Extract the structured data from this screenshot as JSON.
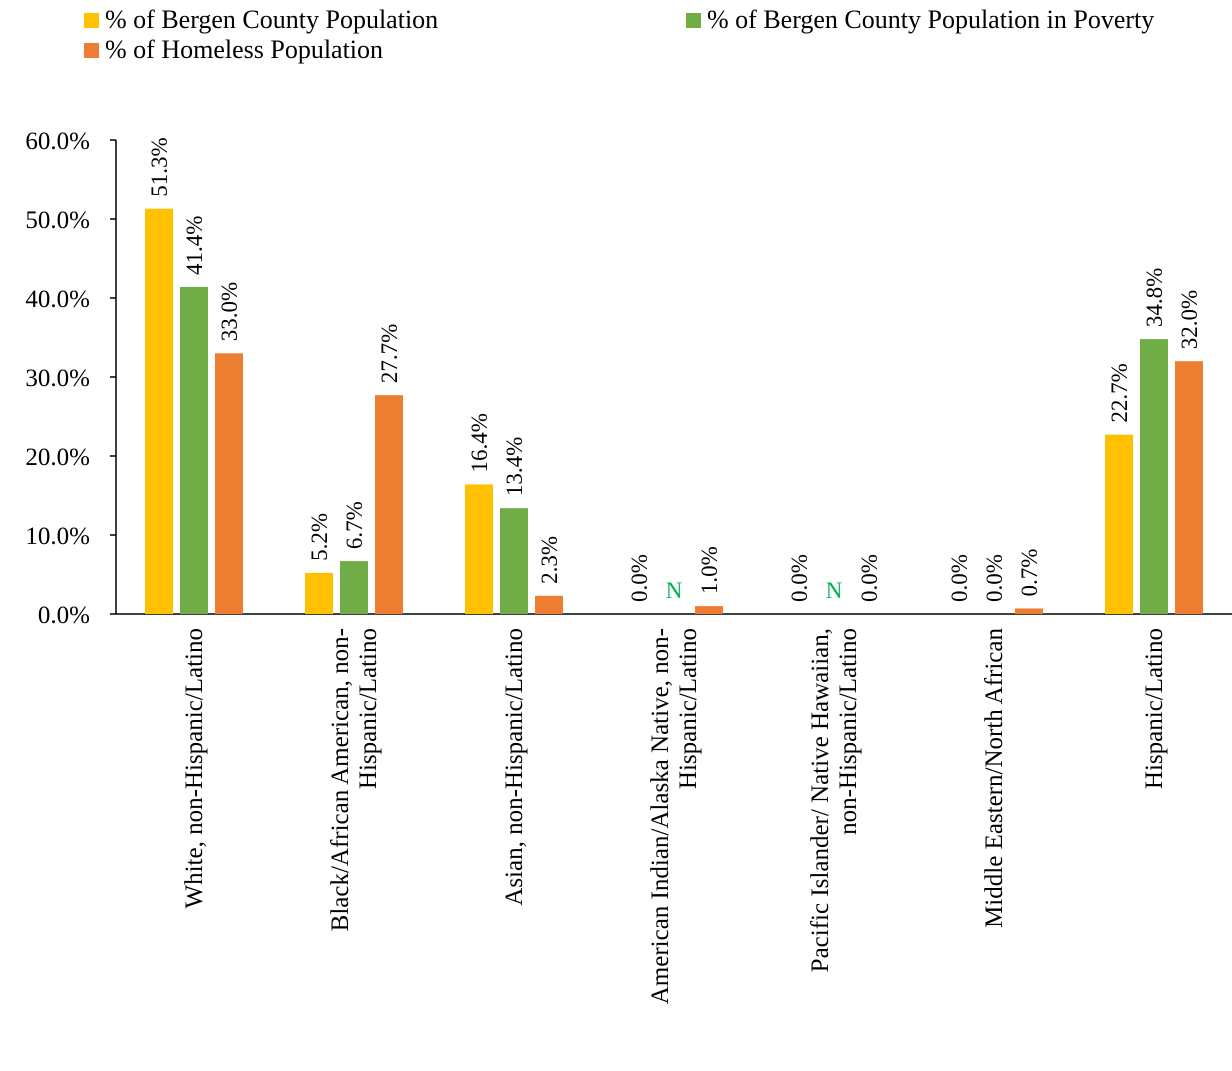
{
  "colors": {
    "population": "#ffc000",
    "poverty": "#70ad47",
    "homeless": "#ed7d31",
    "na_label": "#00b050",
    "axis": "#000000"
  },
  "chart_data": {
    "type": "bar",
    "title": "",
    "xlabel": "",
    "ylabel": "",
    "ylim": [
      0,
      60
    ],
    "yticks": [
      "0.0%",
      "10.0%",
      "20.0%",
      "30.0%",
      "40.0%",
      "50.0%",
      "60.0%"
    ],
    "grid": false,
    "legend_position": "top",
    "categories": [
      [
        "White, non-Hispanic/Latino"
      ],
      [
        "Black/African American, non-",
        "Hispanic/Latino"
      ],
      [
        "Asian, non-Hispanic/Latino"
      ],
      [
        "American Indian/Alaska Native, non-",
        "Hispanic/Latino"
      ],
      [
        "Pacific Islander/ Native Hawaiian,",
        "non-Hispanic/Latino"
      ],
      [
        "Middle Eastern/North African"
      ],
      [
        "Hispanic/Latino"
      ]
    ],
    "series": [
      {
        "name": "% of Bergen County Population",
        "values": [
          51.3,
          5.2,
          16.4,
          0.0,
          0.0,
          0.0,
          22.7
        ],
        "labels": [
          "51.3%",
          "5.2%",
          "16.4%",
          "0.0%",
          "0.0%",
          "0.0%",
          "22.7%"
        ]
      },
      {
        "name": "% of Bergen County Population in Poverty",
        "values": [
          41.4,
          6.7,
          13.4,
          null,
          null,
          0.0,
          34.8
        ],
        "labels": [
          "41.4%",
          "6.7%",
          "13.4%",
          "N",
          "N",
          "0.0%",
          "34.8%"
        ]
      },
      {
        "name": "% of Homeless Population",
        "values": [
          33.0,
          27.7,
          2.3,
          1.0,
          0.0,
          0.7,
          32.0
        ],
        "labels": [
          "33.0%",
          "27.7%",
          "2.3%",
          "1.0%",
          "0.0%",
          "0.7%",
          "32.0%"
        ]
      }
    ]
  }
}
